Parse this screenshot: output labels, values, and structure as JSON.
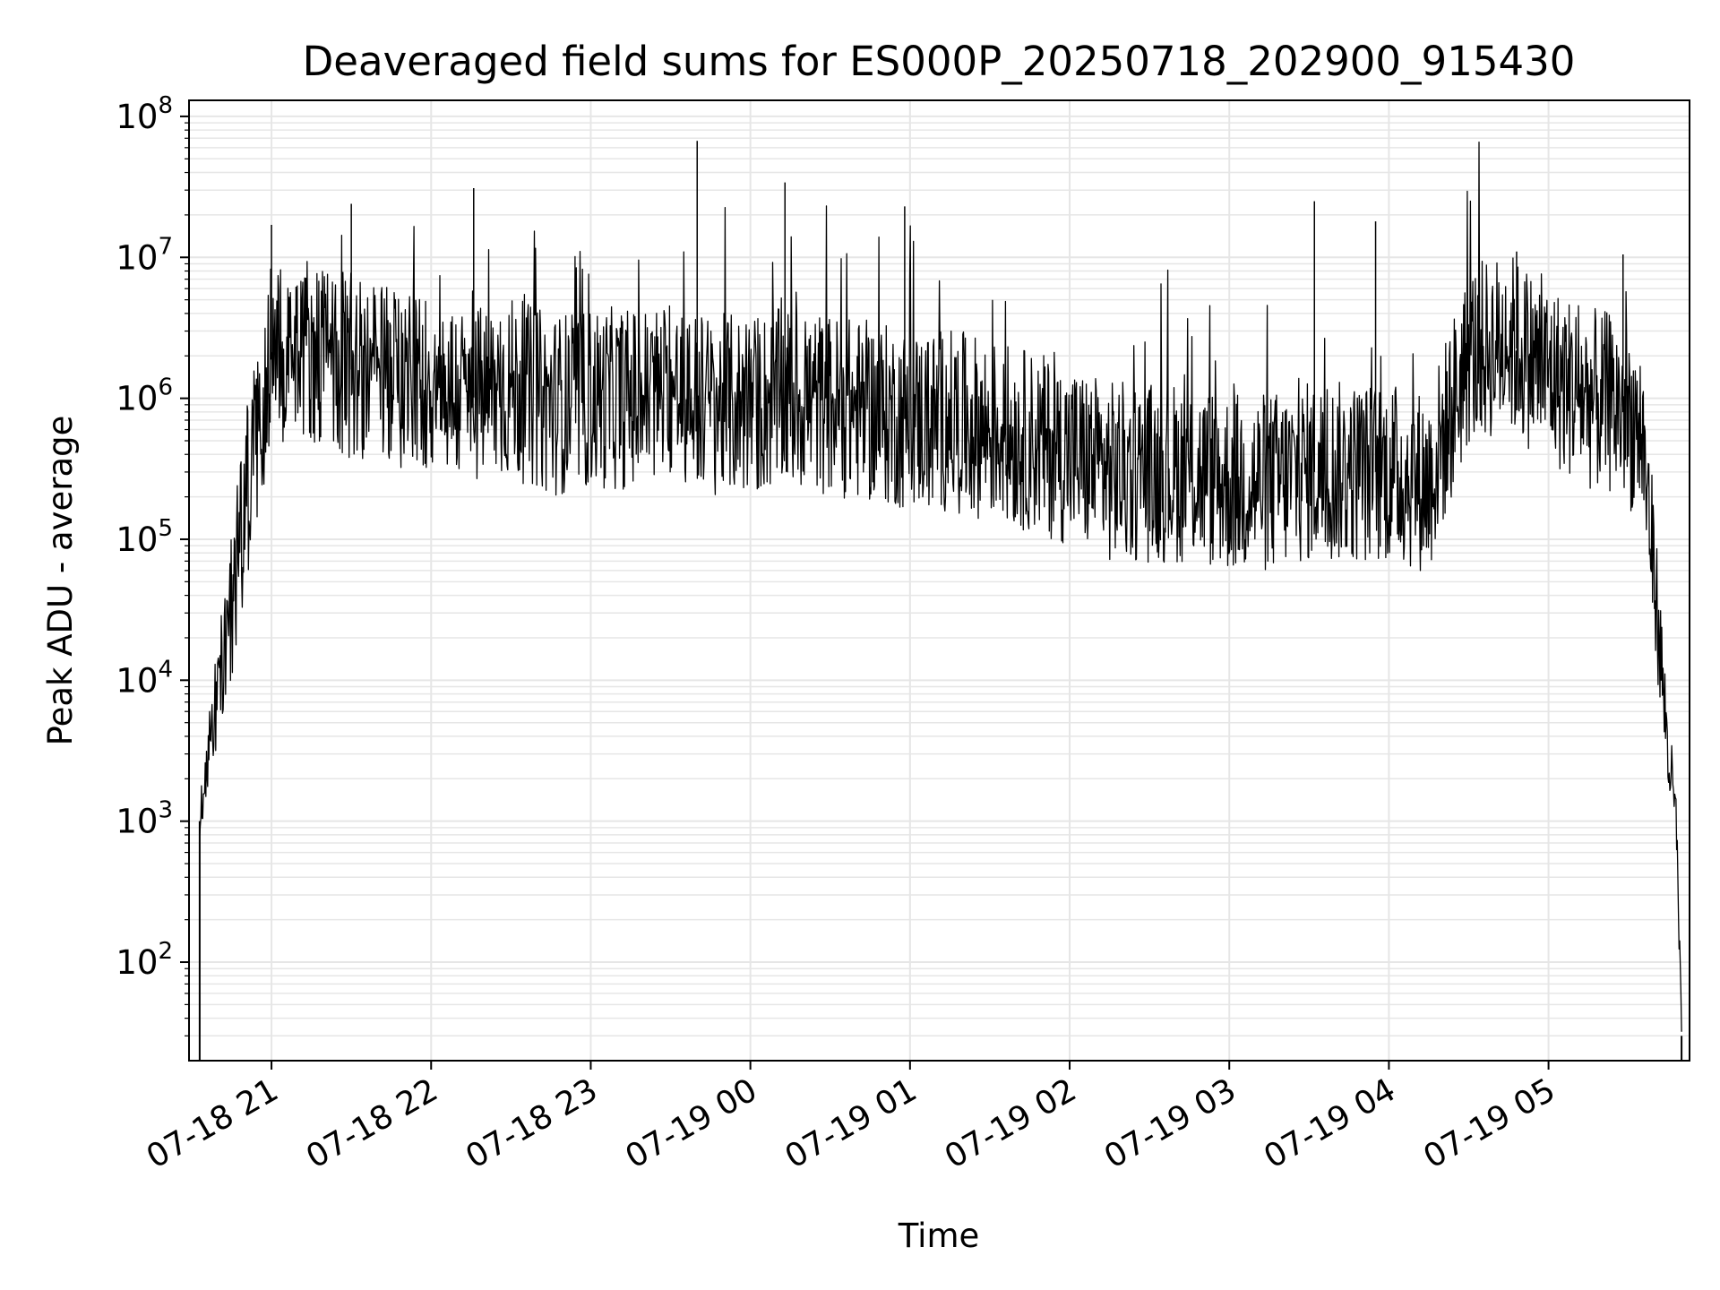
{
  "chart_data": {
    "type": "line",
    "title": "Deaveraged field sums for ES000P_20250718_202900_915430",
    "xlabel": "Time",
    "ylabel": "Peak ADU - average",
    "yscale": "log",
    "ylim": [
      20,
      130000000
    ],
    "xlim": [
      "07-18 20:29",
      "07-19 05:53"
    ],
    "grid": true,
    "line_color": "#000000",
    "grid_color": "#e6e6e6",
    "x_ticks": [
      "07-18 21",
      "07-18 22",
      "07-18 23",
      "07-19 00",
      "07-19 01",
      "07-19 02",
      "07-19 03",
      "07-19 04",
      "07-19 05"
    ],
    "y_ticks": [
      {
        "base": "10",
        "exp": "2",
        "value": 100
      },
      {
        "base": "10",
        "exp": "3",
        "value": 1000
      },
      {
        "base": "10",
        "exp": "4",
        "value": 10000
      },
      {
        "base": "10",
        "exp": "5",
        "value": 100000
      },
      {
        "base": "10",
        "exp": "6",
        "value": 1000000
      },
      {
        "base": "10",
        "exp": "7",
        "value": 10000000
      },
      {
        "base": "10",
        "exp": "8",
        "value": 100000000
      }
    ],
    "series": [
      {
        "x": [
          "07-18 20:33",
          "07-18 20:36",
          "07-18 20:40",
          "07-18 20:44",
          "07-18 20:48",
          "07-18 20:52",
          "07-18 20:56",
          "07-18 21:00",
          "07-18 21:10",
          "07-18 21:20",
          "07-18 21:30",
          "07-18 21:40",
          "07-18 21:50",
          "07-18 22:00",
          "07-18 22:15",
          "07-18 22:30",
          "07-18 22:45",
          "07-18 23:00",
          "07-18 23:15",
          "07-18 23:30",
          "07-18 23:45",
          "07-19 00:00",
          "07-19 00:15",
          "07-19 00:30",
          "07-19 00:45",
          "07-19 01:00",
          "07-19 01:15",
          "07-19 01:30",
          "07-19 01:45",
          "07-19 02:00",
          "07-19 02:15",
          "07-19 02:30",
          "07-19 02:45",
          "07-19 03:00",
          "07-19 03:15",
          "07-19 03:30",
          "07-19 03:45",
          "07-19 04:00",
          "07-19 04:15",
          "07-19 04:30",
          "07-19 04:45",
          "07-19 05:00",
          "07-19 05:15",
          "07-19 05:25",
          "07-19 05:35",
          "07-19 05:40",
          "07-19 05:45",
          "07-19 05:48",
          "07-19 05:50"
        ],
        "y": [
          1000,
          3000,
          8000,
          25000,
          100000,
          300000,
          800000,
          2000000,
          2500000,
          2000000,
          1600000,
          1500000,
          1400000,
          1300000,
          1000000,
          1200000,
          900000,
          1000000,
          1000000,
          1100000,
          900000,
          900000,
          1000000,
          900000,
          800000,
          700000,
          700000,
          600000,
          500000,
          400000,
          300000,
          300000,
          300000,
          250000,
          250000,
          300000,
          300000,
          300000,
          250000,
          2000000,
          2500000,
          1500000,
          1000000,
          900000,
          600000,
          50000,
          3000,
          1000,
          30
        ],
        "spikes": [
          {
            "x": "07-18 21:00",
            "y": 17000000
          },
          {
            "x": "07-18 21:30",
            "y": 24000000
          },
          {
            "x": "07-18 22:16",
            "y": 31000000
          },
          {
            "x": "07-18 23:40",
            "y": 67000000
          },
          {
            "x": "07-19 00:13",
            "y": 34000000
          },
          {
            "x": "07-19 00:58",
            "y": 23000000
          },
          {
            "x": "07-19 03:32",
            "y": 25000000
          },
          {
            "x": "07-19 03:55",
            "y": 18000000
          },
          {
            "x": "07-19 04:48",
            "y": 11000000
          },
          {
            "x": "07-19 05:28",
            "y": 10500000
          }
        ]
      }
    ]
  }
}
